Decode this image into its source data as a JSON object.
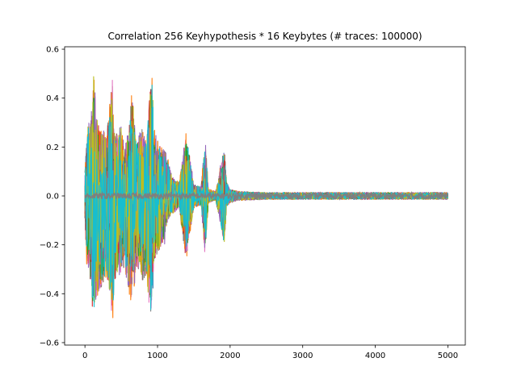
{
  "chart_data": {
    "type": "line",
    "title": "Correlation 256 Keyhypothesis * 16 Keybytes (# traces: 100000)",
    "xlabel": "",
    "ylabel": "",
    "xlim": [
      -280,
      5240
    ],
    "ylim": [
      -0.61,
      0.61
    ],
    "xticks": [
      0,
      1000,
      2000,
      3000,
      4000,
      5000
    ],
    "yticks": [
      -0.6,
      -0.4,
      -0.2,
      0.0,
      0.2,
      0.4,
      0.6
    ],
    "ytick_labels": [
      "−0.6",
      "−0.4",
      "−0.2",
      "0.0",
      "0.2",
      "0.4",
      "0.6"
    ],
    "grid": false,
    "legend": "none",
    "n_series": 4096,
    "n_samples": 5000,
    "palette": [
      "#1f77b4",
      "#ff7f0e",
      "#2ca02c",
      "#d62728",
      "#9467bd",
      "#8c564b",
      "#e377c2",
      "#7f7f7f",
      "#bcbd22",
      "#17becf"
    ],
    "envelope": {
      "x": [
        0,
        30,
        60,
        100,
        120,
        150,
        200,
        250,
        300,
        350,
        380,
        400,
        450,
        500,
        550,
        600,
        650,
        700,
        750,
        800,
        850,
        900,
        930,
        950,
        1000,
        1050,
        1100,
        1150,
        1200,
        1300,
        1380,
        1400,
        1500,
        1600,
        1650,
        1660,
        1700,
        1800,
        1900,
        1920,
        1950,
        2000,
        2100,
        2500,
        3000,
        4000,
        5000
      ],
      "upper": [
        0.1,
        0.33,
        0.3,
        0.38,
        0.55,
        0.38,
        0.3,
        0.28,
        0.27,
        0.42,
        0.5,
        0.3,
        0.27,
        0.31,
        0.2,
        0.3,
        0.47,
        0.25,
        0.27,
        0.29,
        0.24,
        0.52,
        0.5,
        0.28,
        0.24,
        0.21,
        0.2,
        0.15,
        0.08,
        0.06,
        0.25,
        0.27,
        0.05,
        0.04,
        0.23,
        0.24,
        0.03,
        0.02,
        0.18,
        0.23,
        0.06,
        0.03,
        0.02,
        0.015,
        0.015,
        0.015,
        0.015
      ],
      "lower": [
        -0.11,
        -0.33,
        -0.3,
        -0.5,
        -0.55,
        -0.45,
        -0.4,
        -0.38,
        -0.35,
        -0.44,
        -0.54,
        -0.4,
        -0.35,
        -0.33,
        -0.3,
        -0.4,
        -0.47,
        -0.33,
        -0.3,
        -0.37,
        -0.35,
        -0.52,
        -0.51,
        -0.3,
        -0.24,
        -0.22,
        -0.2,
        -0.1,
        -0.08,
        -0.05,
        -0.26,
        -0.27,
        -0.05,
        -0.04,
        -0.24,
        -0.24,
        -0.03,
        -0.02,
        -0.18,
        -0.24,
        -0.05,
        -0.03,
        -0.02,
        -0.015,
        -0.015,
        -0.015,
        -0.015
      ]
    }
  }
}
